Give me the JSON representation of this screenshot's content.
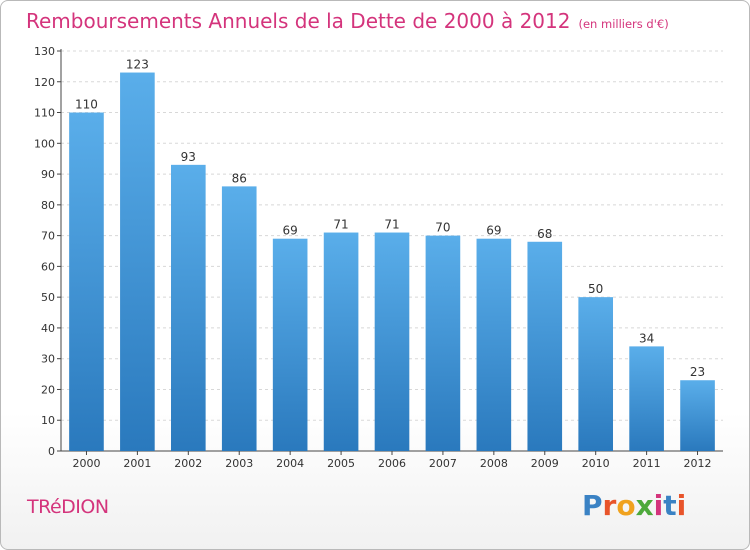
{
  "header": {
    "title": "Remboursements Annuels de la Dette de 2000 à 2012",
    "subtitle": "(en milliers d'€)"
  },
  "commune": "TRéDION",
  "logo": {
    "letters": [
      "P",
      "r",
      "o",
      "x",
      "i",
      "t",
      "i"
    ],
    "colors": [
      "#3a82c4",
      "#e8542a",
      "#f0a21e",
      "#4da93b",
      "#d4347c",
      "#3a82c4",
      "#e8542a"
    ]
  },
  "colors": {
    "accent": "#d4347c",
    "bar_top": "#5aaeea",
    "bar_bottom": "#2a79bd"
  },
  "chart_data": {
    "type": "bar",
    "categories": [
      "2000",
      "2001",
      "2002",
      "2003",
      "2004",
      "2005",
      "2006",
      "2007",
      "2008",
      "2009",
      "2010",
      "2011",
      "2012"
    ],
    "values": [
      110,
      123,
      93,
      86,
      69,
      71,
      71,
      70,
      69,
      68,
      50,
      34,
      23
    ],
    "data_labels": [
      "110",
      "123",
      "93",
      "86",
      "69",
      "71",
      "71",
      "70",
      "69",
      "68",
      "50",
      "34",
      "23"
    ],
    "yticks": [
      0,
      10,
      20,
      30,
      40,
      50,
      60,
      70,
      80,
      90,
      100,
      110,
      120,
      130
    ],
    "ylim": [
      0,
      130
    ],
    "grid": true,
    "xlabel": "",
    "ylabel": ""
  }
}
